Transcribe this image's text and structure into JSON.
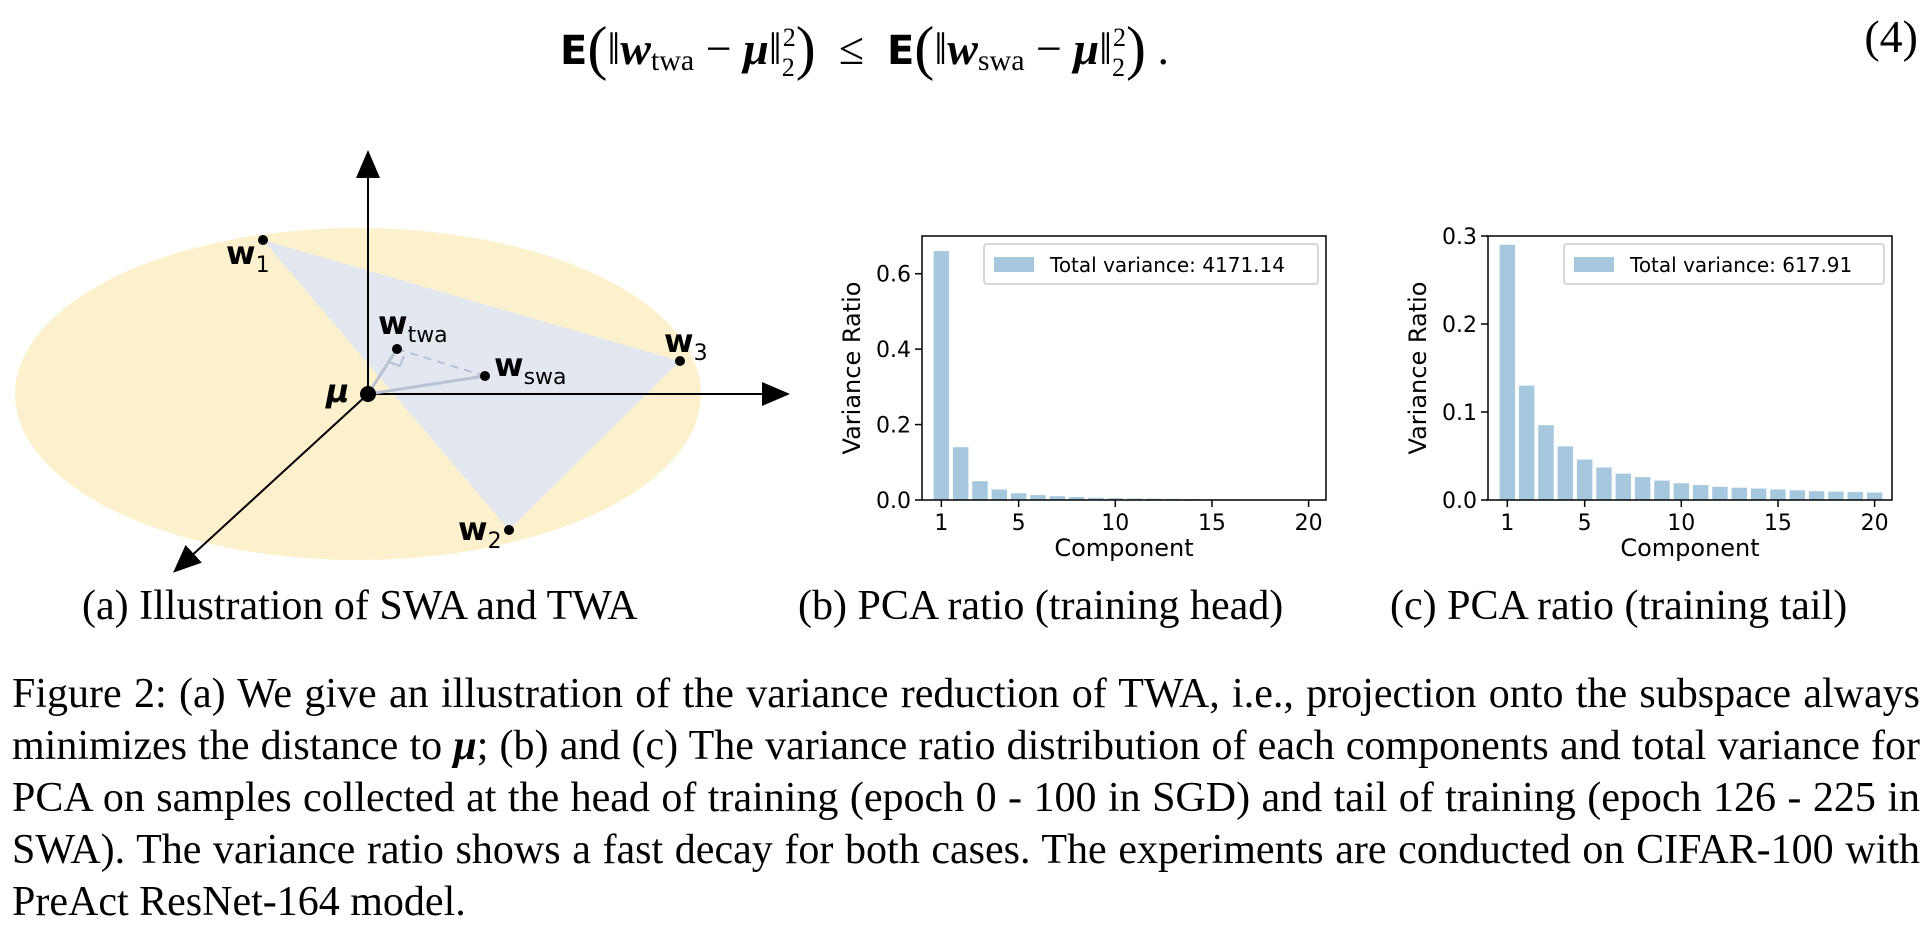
{
  "equation": {
    "lhs_sub": "twa",
    "rhs_sub": "swa",
    "number": "(4)"
  },
  "illustration": {
    "labels": {
      "w1": "w",
      "w1_sub": "1",
      "w2": "w",
      "w2_sub": "2",
      "w3": "w",
      "w3_sub": "3",
      "wtwa": "w",
      "wtwa_sub": "twa",
      "wswa": "w",
      "wswa_sub": "swa",
      "mu": "μ"
    },
    "colors": {
      "ellipse": "#fdf0cc",
      "triangle": "#e3e8f0",
      "dashed": "#b8c2d3"
    }
  },
  "subcaptions": {
    "a": "(a) Illustration of SWA and TWA",
    "b": "(b) PCA ratio (training head)",
    "c": "(c) PCA ratio (training tail)"
  },
  "caption": {
    "part1": "Figure 2: (a) We give an illustration of the variance reduction of TWA, i.e., projection onto the subspace always minimizes the distance to ",
    "mu": "μ",
    "part2": "; (b) and (c) The variance ratio distribution of each components and total variance for PCA on samples collected at the head of training (epoch 0 - 100 in SGD) and tail of training (epoch 126 - 225 in SWA). The variance ratio shows a fast decay for both cases. The experiments are conducted on CIFAR-100 with PreAct ResNet-164 model."
  },
  "chart_data": [
    {
      "type": "bar",
      "xlabel": "Component",
      "ylabel": "Variance Ratio",
      "legend": "Total variance: 4171.14",
      "legend_position": "top-right",
      "color": "#a6c8df",
      "x": [
        1,
        2,
        3,
        4,
        5,
        6,
        7,
        8,
        9,
        10,
        11,
        12,
        13,
        14,
        15,
        16,
        17,
        18,
        19,
        20
      ],
      "values": [
        0.66,
        0.14,
        0.05,
        0.028,
        0.018,
        0.013,
        0.01,
        0.008,
        0.006,
        0.005,
        0.004,
        0.0035,
        0.003,
        0.0025,
        0.002,
        0.0018,
        0.0015,
        0.0012,
        0.001,
        0.0008
      ],
      "ylim": [
        0,
        0.7
      ],
      "yticks": [
        0.0,
        0.2,
        0.4,
        0.6
      ],
      "yticklabels": [
        "0.0",
        "0.2",
        "0.4",
        "0.6"
      ],
      "xticks": [
        1,
        5,
        10,
        15,
        20
      ],
      "xticklabels": [
        "1",
        "5",
        "10",
        "15",
        "20"
      ],
      "grid": false
    },
    {
      "type": "bar",
      "xlabel": "Component",
      "ylabel": "Variance Ratio",
      "legend": "Total variance: 617.91",
      "legend_position": "top-right",
      "color": "#a6c8df",
      "x": [
        1,
        2,
        3,
        4,
        5,
        6,
        7,
        8,
        9,
        10,
        11,
        12,
        13,
        14,
        15,
        16,
        17,
        18,
        19,
        20
      ],
      "values": [
        0.29,
        0.13,
        0.085,
        0.061,
        0.046,
        0.037,
        0.03,
        0.026,
        0.022,
        0.019,
        0.017,
        0.015,
        0.014,
        0.013,
        0.012,
        0.011,
        0.01,
        0.0095,
        0.009,
        0.0085
      ],
      "ylim": [
        0,
        0.3
      ],
      "yticks": [
        0.0,
        0.1,
        0.2,
        0.3
      ],
      "yticklabels": [
        "0.0",
        "0.1",
        "0.2",
        "0.3"
      ],
      "xticks": [
        1,
        5,
        10,
        15,
        20
      ],
      "xticklabels": [
        "1",
        "5",
        "10",
        "15",
        "20"
      ],
      "grid": false
    }
  ]
}
